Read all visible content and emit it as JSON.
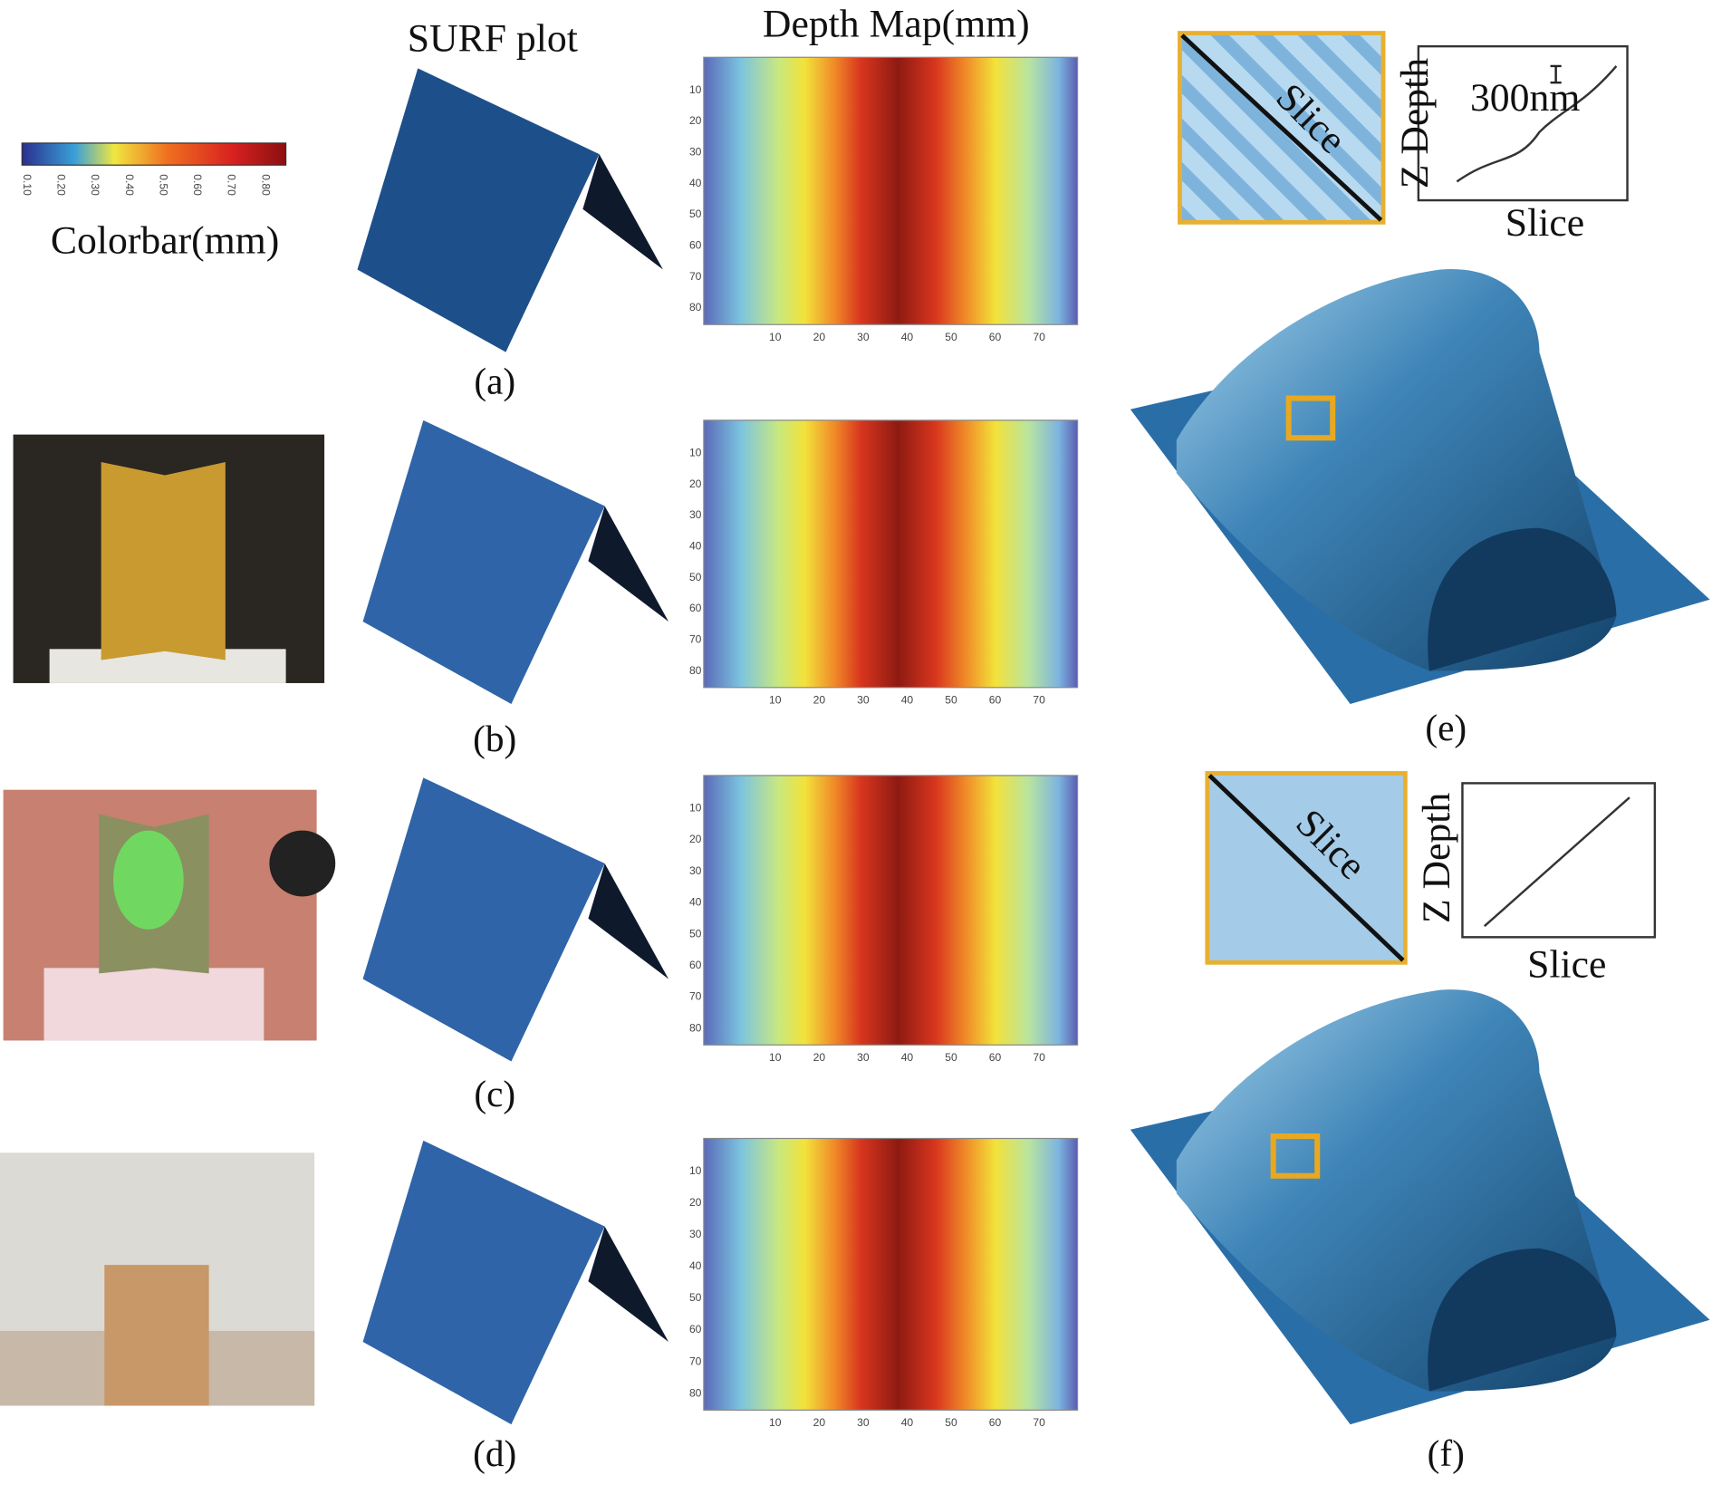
{
  "headers": {
    "surf": "SURF plot",
    "depth": "Depth Map(mm)"
  },
  "colorbar": {
    "label": "Colorbar(mm)",
    "ticks": [
      "0.10",
      "0.20",
      "0.30",
      "0.40",
      "0.50",
      "0.60",
      "0.70",
      "0.80"
    ]
  },
  "depth_map": {
    "yticks": [
      10,
      20,
      30,
      40,
      50,
      60,
      70,
      80
    ],
    "xticks": [
      10,
      20,
      30,
      40,
      50,
      60,
      70
    ]
  },
  "panel_labels": [
    "(a)",
    "(b)",
    "(c)",
    "(d)",
    "(e)",
    "(f)"
  ],
  "insets": [
    {
      "slice": "Slice",
      "z_axis": "Z Depth",
      "x_axis": "Slice",
      "scale": "300nm"
    },
    {
      "slice": "Slice",
      "z_axis": "Z Depth",
      "x_axis": "Slice"
    }
  ]
}
